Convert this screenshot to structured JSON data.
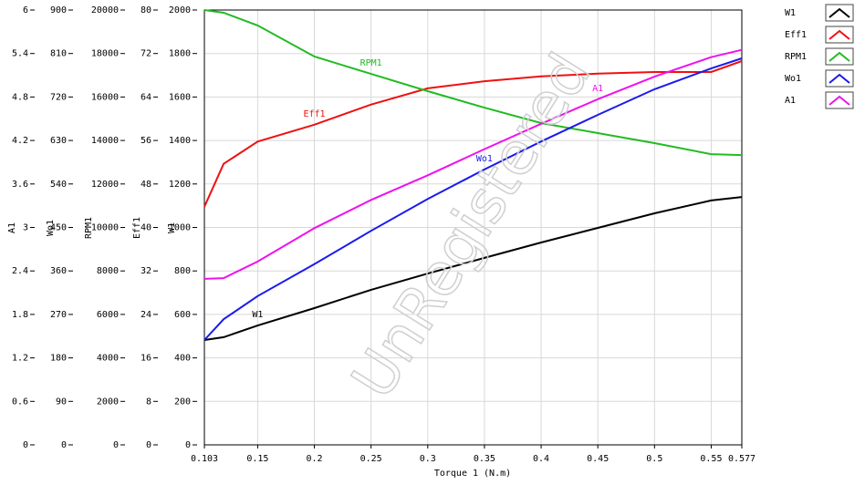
{
  "chart_data": {
    "type": "line",
    "x_label": "Torque 1 (N.m)",
    "watermark": "UnRegistered",
    "grid": true,
    "legend": "right",
    "xlim": [
      0.103,
      0.577
    ],
    "xticks": [
      0.103,
      0.15,
      0.2,
      0.25,
      0.3,
      0.35,
      0.4,
      0.45,
      0.5,
      0.55,
      0.577
    ],
    "x": [
      0.103,
      0.12,
      0.15,
      0.2,
      0.25,
      0.3,
      0.35,
      0.4,
      0.45,
      0.5,
      0.55,
      0.577
    ],
    "series": [
      {
        "name": "W1",
        "color": "#000000",
        "ylim": [
          0,
          2000
        ],
        "yticks": [
          0,
          200,
          400,
          600,
          800,
          1000,
          1200,
          1400,
          1600,
          1800,
          2000
        ],
        "values": [
          482,
          495,
          549,
          629,
          713,
          788,
          860,
          931,
          998,
          1065,
          1124,
          1140
        ]
      },
      {
        "name": "Eff1",
        "color": "#ee1111",
        "ylim": [
          0,
          80
        ],
        "yticks": [
          0,
          8,
          16,
          24,
          32,
          40,
          48,
          56,
          64,
          72,
          80
        ],
        "values": [
          43.8,
          51.7,
          55.8,
          58.9,
          62.6,
          65.6,
          66.9,
          67.8,
          68.3,
          68.6,
          68.6,
          70.6
        ]
      },
      {
        "name": "RPM1",
        "color": "#22bb22",
        "ylim": [
          0,
          20000
        ],
        "yticks": [
          0,
          2000,
          4000,
          6000,
          8000,
          10000,
          12000,
          14000,
          16000,
          18000,
          20000
        ],
        "values": [
          20000,
          19875,
          19290,
          17860,
          17060,
          16270,
          15510,
          14800,
          14340,
          13880,
          13370,
          13330
        ]
      },
      {
        "name": "Wo1",
        "color": "#1a1aee",
        "ylim": [
          0,
          900
        ],
        "yticks": [
          0,
          90,
          180,
          270,
          360,
          450,
          540,
          630,
          720,
          810,
          900
        ],
        "values": [
          217,
          260,
          308,
          374,
          443,
          509,
          570,
          628,
          683,
          736,
          779,
          800
        ]
      },
      {
        "name": "A1",
        "color": "#ee11ee",
        "ylim": [
          0,
          6
        ],
        "yticks": [
          0,
          0.6,
          1.2,
          1.8,
          2.4,
          3,
          3.6,
          4.2,
          4.8,
          5.4,
          6
        ],
        "values": [
          2.29,
          2.3,
          2.53,
          2.99,
          3.38,
          3.72,
          4.08,
          4.43,
          4.77,
          5.08,
          5.35,
          5.45
        ]
      }
    ]
  }
}
